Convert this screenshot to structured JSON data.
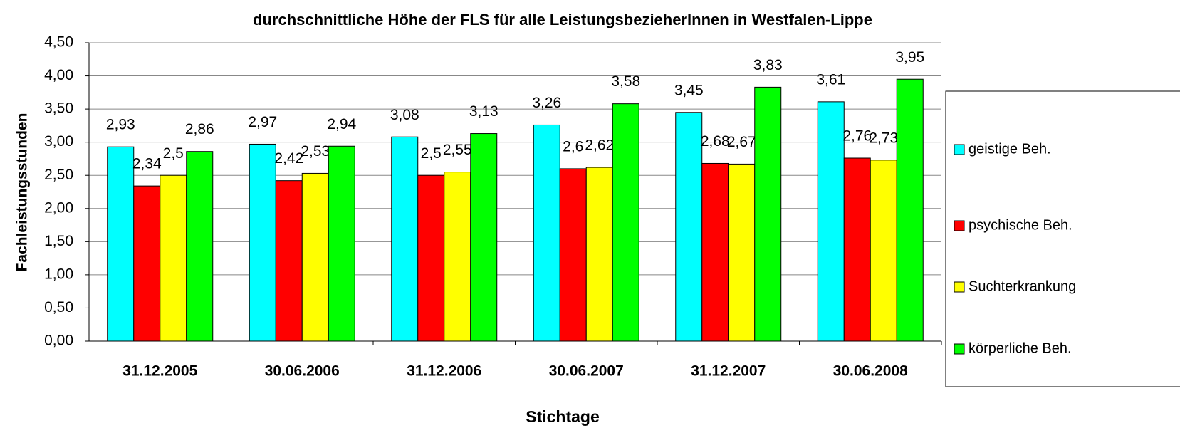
{
  "chart_data": {
    "type": "bar",
    "title": "durchschnittliche Höhe der FLS für alle LeistungsbezieherInnen in Westfalen-Lippe",
    "x_label": "Stichtage",
    "y_label": "Fachleistungsstunden",
    "categories": [
      "31.12.2005",
      "30.06.2006",
      "31.12.2006",
      "30.06.2007",
      "31.12.2007",
      "30.06.2008"
    ],
    "series": [
      {
        "name": "geistige Beh.",
        "color": "#00ffff",
        "values": [
          2.93,
          2.97,
          3.08,
          3.26,
          3.45,
          3.61
        ],
        "value_labels": [
          "2,93",
          "2,97",
          "3,08",
          "3,26",
          "3,45",
          "3,61"
        ]
      },
      {
        "name": "psychische Beh.",
        "color": "#ff0000",
        "values": [
          2.34,
          2.42,
          2.5,
          2.6,
          2.68,
          2.76
        ],
        "value_labels": [
          "2,34",
          "2,42",
          "2,5",
          "2,6",
          "2,68",
          "2,76"
        ]
      },
      {
        "name": "Suchterkrankung",
        "color": "#ffff00",
        "values": [
          2.5,
          2.53,
          2.55,
          2.62,
          2.67,
          2.73
        ],
        "value_labels": [
          "2,5",
          "2,53",
          "2,55",
          "2,62",
          "2,67",
          "2,73"
        ]
      },
      {
        "name": "körperliche Beh.",
        "color": "#00ff00",
        "values": [
          2.86,
          2.94,
          3.13,
          3.58,
          3.83,
          3.95
        ],
        "value_labels": [
          "2,86",
          "2,94",
          "3,13",
          "3,58",
          "3,83",
          "3,95"
        ]
      }
    ],
    "ylim": [
      0,
      4.5
    ],
    "yticks": [
      {
        "value": 0,
        "label": "0,00"
      },
      {
        "value": 0.5,
        "label": "0,50"
      },
      {
        "value": 1,
        "label": "1,00"
      },
      {
        "value": 1.5,
        "label": "1,50"
      },
      {
        "value": 2,
        "label": "2,00"
      },
      {
        "value": 2.5,
        "label": "2,50"
      },
      {
        "value": 3,
        "label": "3,00"
      },
      {
        "value": 3.5,
        "label": "3,50"
      },
      {
        "value": 4,
        "label": "4,00"
      },
      {
        "value": 4.5,
        "label": "4,50"
      }
    ],
    "grid": true,
    "legend": "right"
  }
}
